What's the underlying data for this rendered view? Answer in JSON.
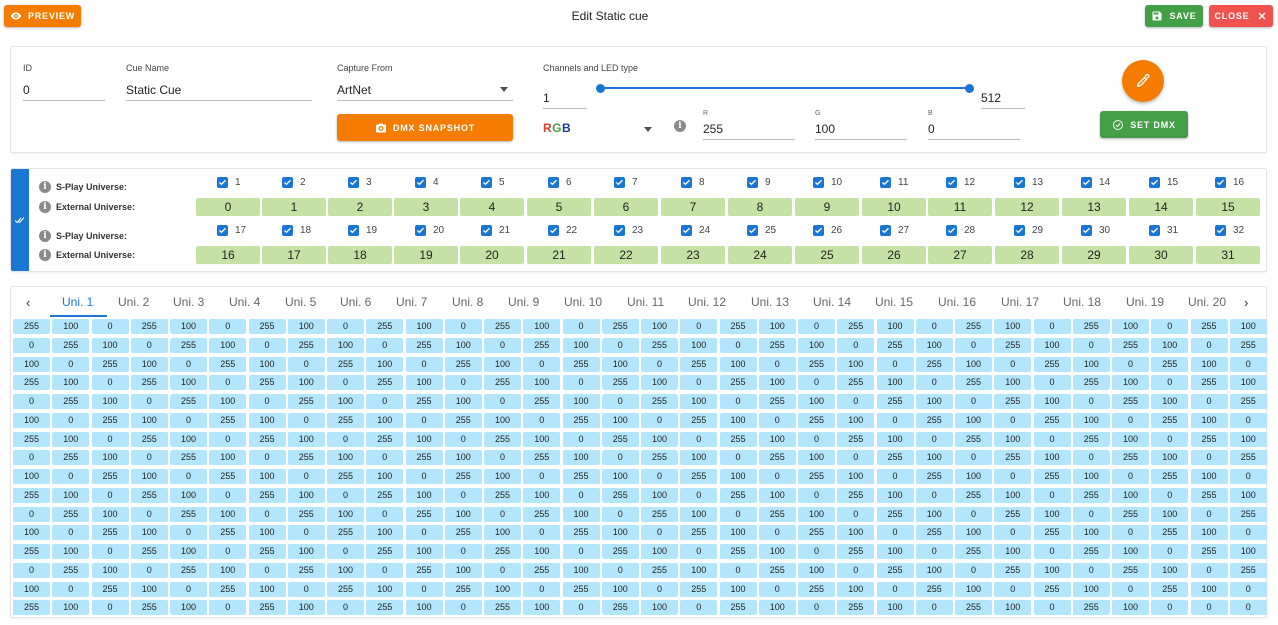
{
  "header": {
    "title": "Edit Static cue",
    "preview_label": "PREVIEW",
    "save_label": "SAVE",
    "close_label": "CLOSE"
  },
  "form": {
    "id_label": "ID",
    "id_value": "0",
    "name_label": "Cue Name",
    "name_value": "Static Cue",
    "capture_label": "Capture From",
    "capture_value": "ArtNet",
    "snapshot_label": "DMX SNAPSHOT",
    "channels_label": "Channels and LED type",
    "ch_from": "1",
    "ch_to": "512",
    "led_type": {
      "r": "R",
      "g": "G",
      "b": "B"
    },
    "r_label": "R",
    "r_value": "255",
    "g_label": "G",
    "g_value": "100",
    "b_label": "B",
    "b_value": "0",
    "setdmx_label": "SET DMX"
  },
  "universes": {
    "splay_label": "S-Play Universe:",
    "external_label": "External Universe:",
    "row1_splay": [
      "1",
      "2",
      "3",
      "4",
      "5",
      "6",
      "7",
      "8",
      "9",
      "10",
      "11",
      "12",
      "13",
      "14",
      "15",
      "16"
    ],
    "row1_ext": [
      "0",
      "1",
      "2",
      "3",
      "4",
      "5",
      "6",
      "7",
      "8",
      "9",
      "10",
      "11",
      "12",
      "13",
      "14",
      "15"
    ],
    "row2_splay": [
      "17",
      "18",
      "19",
      "20",
      "21",
      "22",
      "23",
      "24",
      "25",
      "26",
      "27",
      "28",
      "29",
      "30",
      "31",
      "32"
    ],
    "row2_ext": [
      "16",
      "17",
      "18",
      "19",
      "20",
      "21",
      "22",
      "23",
      "24",
      "25",
      "26",
      "27",
      "28",
      "29",
      "30",
      "31"
    ]
  },
  "tabs": [
    "Uni. 1",
    "Uni. 2",
    "Uni. 3",
    "Uni. 4",
    "Uni. 5",
    "Uni. 6",
    "Uni. 7",
    "Uni. 8",
    "Uni. 9",
    "Uni. 10",
    "Uni. 11",
    "Uni. 12",
    "Uni. 13",
    "Uni. 14",
    "Uni. 15",
    "Uni. 16",
    "Uni. 17",
    "Uni. 18",
    "Uni. 19",
    "Uni. 20"
  ],
  "active_tab": "Uni. 1",
  "grid": {
    "row_patterns": [
      [
        "255",
        "100",
        "0",
        "255",
        "100",
        "0",
        "255",
        "100",
        "0",
        "255",
        "100",
        "0",
        "255",
        "100",
        "0",
        "255",
        "100",
        "0",
        "255",
        "100",
        "0",
        "255",
        "100",
        "0",
        "255",
        "100",
        "0",
        "255",
        "100",
        "0",
        "255",
        "100"
      ],
      [
        "0",
        "255",
        "100",
        "0",
        "255",
        "100",
        "0",
        "255",
        "100",
        "0",
        "255",
        "100",
        "0",
        "255",
        "100",
        "0",
        "255",
        "100",
        "0",
        "255",
        "100",
        "0",
        "255",
        "100",
        "0",
        "255",
        "100",
        "0",
        "255",
        "100",
        "0",
        "255"
      ],
      [
        "100",
        "0",
        "255",
        "100",
        "0",
        "255",
        "100",
        "0",
        "255",
        "100",
        "0",
        "255",
        "100",
        "0",
        "255",
        "100",
        "0",
        "255",
        "100",
        "0",
        "255",
        "100",
        "0",
        "255",
        "100",
        "0",
        "255",
        "100",
        "0",
        "255",
        "100",
        "0"
      ]
    ],
    "last_row": [
      "255",
      "100",
      "0",
      "255",
      "100",
      "0",
      "255",
      "100",
      "0",
      "255",
      "100",
      "0",
      "255",
      "100",
      "0",
      "255",
      "100",
      "0",
      "255",
      "100",
      "0",
      "255",
      "100",
      "0",
      "255",
      "100",
      "0",
      "255",
      "100",
      "0",
      "0",
      "0"
    ],
    "rows": 16
  },
  "colors": {
    "orange": "#f57c00",
    "green": "#43a047",
    "red": "#ef5350",
    "blue": "#1976d2",
    "cell": "#b3e5fc",
    "ext": "#c5e1a5"
  }
}
